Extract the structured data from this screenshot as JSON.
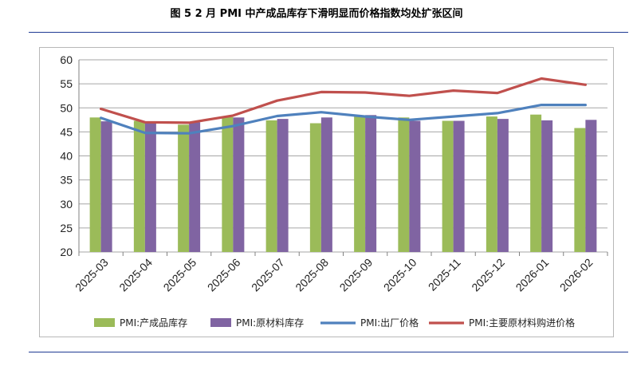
{
  "figure": {
    "title": "图 5    2 月 PMI 中产成品库存下滑明显而价格指数均处扩张区间"
  },
  "colors": {
    "bar_finished": "#9bbb59",
    "bar_raw": "#8064a2",
    "line_output": "#4f81bd",
    "line_input": "#c0504d",
    "rule": "#1f3a93"
  },
  "chart_data": {
    "type": "bar",
    "title": "",
    "xlabel": "",
    "ylabel": "",
    "ylim": [
      20,
      60
    ],
    "yticks": [
      20,
      25,
      30,
      35,
      40,
      45,
      50,
      55,
      60
    ],
    "categories": [
      "2025-03",
      "2025-04",
      "2025-05",
      "2025-06",
      "2025-07",
      "2025-08",
      "2025-09",
      "2025-10",
      "2025-11",
      "2025-12",
      "2026-01",
      "2026-02"
    ],
    "series": [
      {
        "name": "PMI:产成品库存",
        "type": "bar",
        "values": [
          48.0,
          47.3,
          46.5,
          48.1,
          47.4,
          46.8,
          48.2,
          48.0,
          47.3,
          48.2,
          48.6,
          45.8
        ]
      },
      {
        "name": "PMI:原材料库存",
        "type": "bar",
        "values": [
          47.2,
          47.0,
          47.0,
          48.0,
          47.7,
          48.0,
          48.5,
          47.3,
          47.3,
          47.7,
          47.4,
          47.5
        ]
      },
      {
        "name": "PMI:出厂价格",
        "type": "line",
        "values": [
          47.9,
          44.8,
          44.7,
          46.2,
          48.3,
          49.1,
          48.2,
          47.5,
          48.2,
          48.9,
          50.6,
          50.6
        ]
      },
      {
        "name": "PMI:主要原材料购进价格",
        "type": "line",
        "values": [
          49.8,
          47.0,
          46.9,
          48.4,
          51.5,
          53.3,
          53.2,
          52.5,
          53.6,
          53.1,
          56.1,
          54.8
        ]
      }
    ],
    "grid": true,
    "legend_position": "bottom"
  }
}
